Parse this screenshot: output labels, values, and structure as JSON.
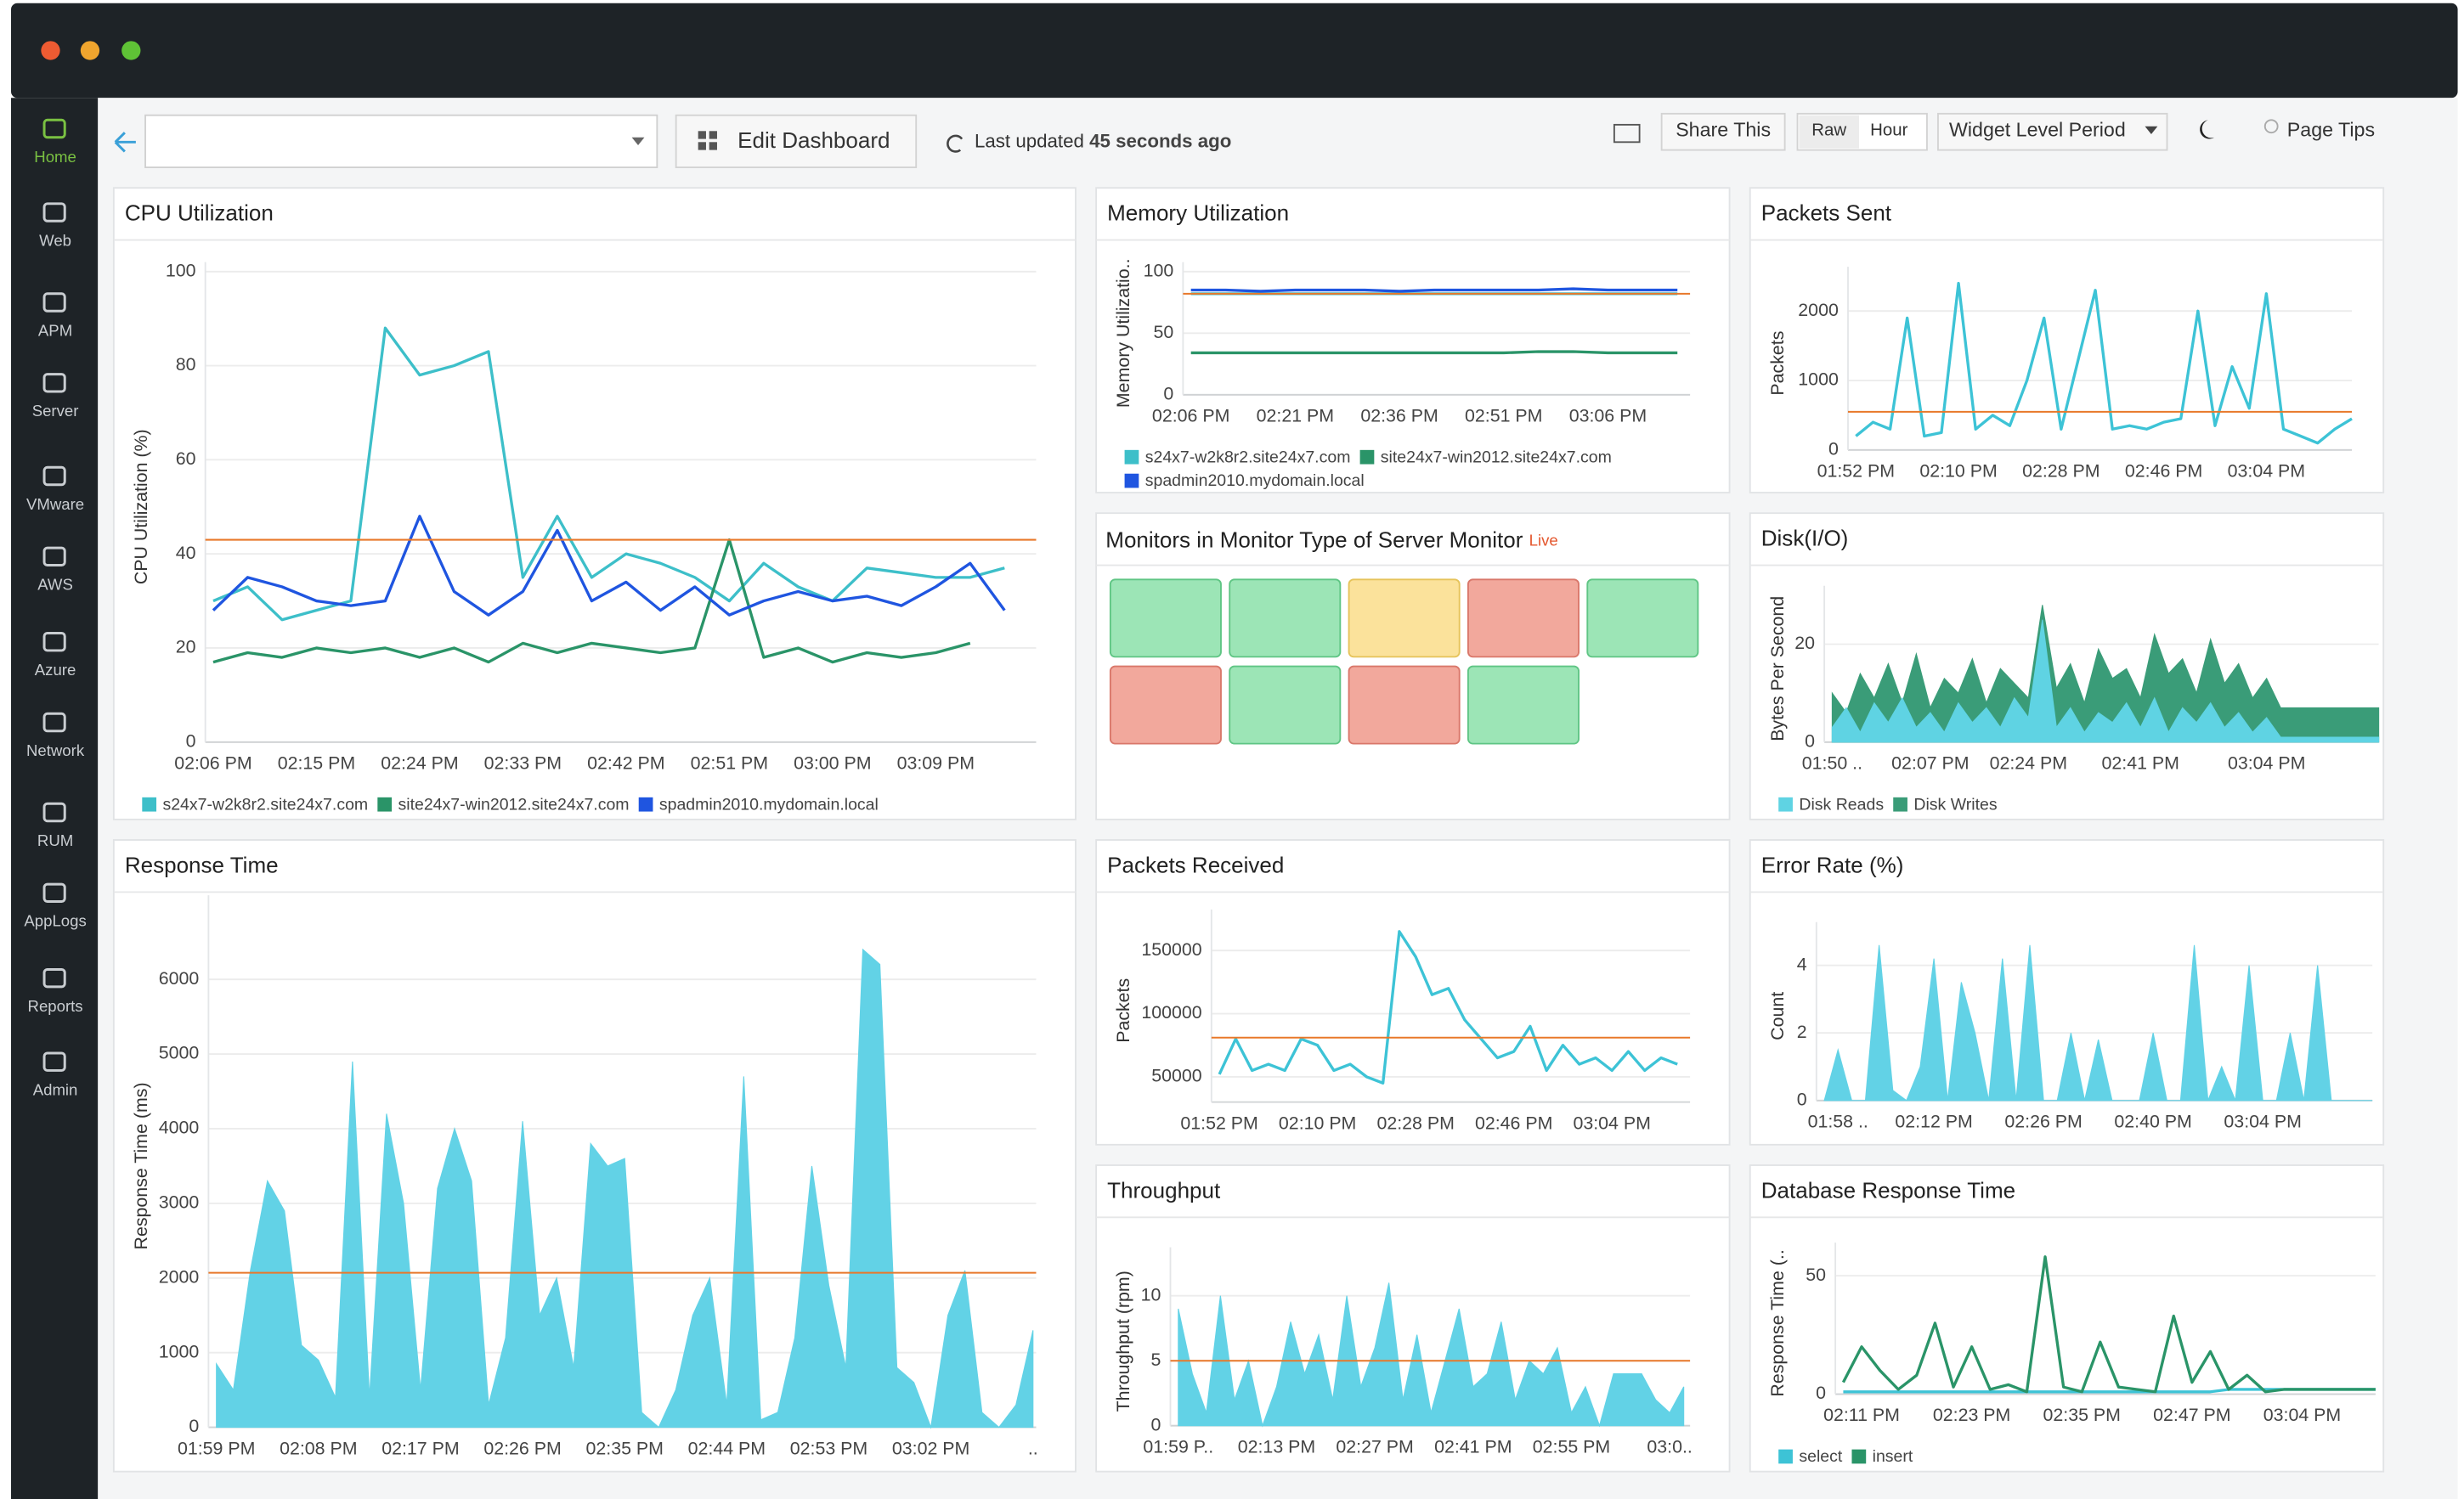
{
  "sidebar": {
    "items": [
      "Home",
      "Web",
      "APM",
      "Server",
      "VMware",
      "AWS",
      "Azure",
      "Network",
      "RUM",
      "AppLogs",
      "Reports",
      "Admin"
    ]
  },
  "toolbar": {
    "edit_dashboard": "Edit Dashboard",
    "last_updated": "Last updated",
    "last_updated_value": "45 seconds ago",
    "share": "Share This",
    "raw": "Raw",
    "hour": "Hour",
    "period": "Widget Level Period",
    "page_tips": "Page Tips"
  },
  "monitors": {
    "title": "Monitors in Monitor Type of Server Monitor",
    "live": "Live",
    "tile_colors": [
      "green",
      "green",
      "yellow",
      "red",
      "green",
      "red",
      "green",
      "red",
      "green"
    ]
  },
  "chart_data": [
    {
      "type": "line",
      "title": "CPU Utilization",
      "y_label": "CPU Utilization (%)",
      "categories": [
        "02:06 PM",
        null,
        null,
        "02:15 PM",
        null,
        null,
        "02:24 PM",
        null,
        null,
        "02:33 PM",
        null,
        null,
        "02:42 PM",
        null,
        null,
        "02:51 PM",
        null,
        null,
        "03:00 PM",
        null,
        null,
        "03:09 PM",
        null,
        null
      ],
      "series": [
        {
          "name": "s24x7-w2k8r2.site24x7.com",
          "color": "#3dbfc9",
          "values": [
            30,
            33,
            26,
            28,
            30,
            88,
            78,
            80,
            83,
            35,
            48,
            35,
            40,
            38,
            35,
            30,
            38,
            33,
            30,
            37,
            36,
            35,
            35,
            37
          ]
        },
        {
          "name": "site24x7-win2012.site24x7.com",
          "color": "#2a9468",
          "values": [
            17,
            19,
            18,
            20,
            19,
            20,
            18,
            20,
            17,
            21,
            19,
            21,
            20,
            19,
            20,
            43,
            18,
            20,
            17,
            19,
            18,
            19,
            21,
            null
          ]
        },
        {
          "name": "spadmin2010.mydomain.local",
          "color": "#1f55e0",
          "values": [
            28,
            35,
            33,
            30,
            29,
            30,
            48,
            32,
            27,
            32,
            45,
            30,
            34,
            28,
            33,
            27,
            30,
            32,
            30,
            31,
            29,
            33,
            38,
            28
          ]
        }
      ],
      "ylim": [
        0,
        100
      ],
      "yticks": [
        0,
        20,
        40,
        60,
        80,
        100
      ],
      "threshold": 43,
      "threshold_color": "#e8782a",
      "grid": true,
      "legend": true
    },
    {
      "type": "line",
      "title": "Memory Utilization",
      "y_label": "Memory Utilizatio..",
      "categories": [
        "02:06 PM",
        null,
        null,
        "02:21 PM",
        null,
        null,
        "02:36 PM",
        null,
        null,
        "02:51 PM",
        null,
        null,
        "03:06 PM",
        null,
        null
      ],
      "series": [
        {
          "name": "s24x7-w2k8r2.site24x7.com",
          "color": "#3dbfc9",
          "values": [
            82,
            82,
            82,
            82,
            82,
            82,
            82,
            82,
            82,
            82,
            82,
            82,
            82,
            82,
            82
          ]
        },
        {
          "name": "site24x7-win2012.site24x7.com",
          "color": "#2a9468",
          "values": [
            34,
            34,
            34,
            34,
            34,
            34,
            34,
            34,
            34,
            34,
            35,
            35,
            34,
            34,
            34
          ]
        },
        {
          "name": "spadmin2010.mydomain.local",
          "color": "#1f55e0",
          "values": [
            85,
            85,
            84,
            85,
            85,
            85,
            84,
            85,
            85,
            85,
            85,
            86,
            85,
            85,
            85
          ]
        }
      ],
      "ylim": [
        0,
        100
      ],
      "yticks": [
        0,
        50,
        100
      ],
      "threshold": 82,
      "threshold_color": "#e8782a",
      "grid": true,
      "legend": true
    },
    {
      "type": "line",
      "title": "Packets Sent",
      "y_label": "Packets",
      "categories": [
        "01:52 PM",
        null,
        null,
        null,
        null,
        null,
        "02:10 PM",
        null,
        null,
        null,
        null,
        null,
        "02:28 PM",
        null,
        null,
        null,
        null,
        null,
        "02:46 PM",
        null,
        null,
        null,
        null,
        null,
        "03:04 PM",
        null,
        null,
        null,
        null,
        null
      ],
      "color": "#3dc3d6",
      "values": [
        200,
        400,
        300,
        1900,
        200,
        250,
        2400,
        300,
        500,
        350,
        1000,
        1900,
        300,
        1300,
        2300,
        300,
        350,
        300,
        400,
        450,
        2000,
        350,
        1200,
        600,
        2250,
        300,
        200,
        100,
        300,
        450
      ],
      "ylim": [
        0,
        2500
      ],
      "yticks": [
        0,
        1000,
        2000
      ],
      "threshold": 550,
      "threshold_color": "#e8782a",
      "grid": true,
      "legend": false
    },
    {
      "type": "area",
      "title": "Disk(I/O)",
      "y_label": "Bytes Per Second",
      "categories": [
        "01:50 ..",
        null,
        null,
        null,
        null,
        null,
        null,
        "02:07 PM",
        null,
        null,
        null,
        null,
        null,
        null,
        "02:24 PM",
        null,
        null,
        null,
        null,
        null,
        null,
        null,
        "02:41 PM",
        null,
        null,
        null,
        null,
        null,
        null,
        null,
        null,
        "03:04 PM",
        null,
        null,
        null,
        null,
        null,
        null,
        null,
        null
      ],
      "series": [
        {
          "name": "Disk Reads",
          "color": "#5fd3e3",
          "values": [
            3,
            7,
            2,
            8,
            4,
            9,
            3,
            6,
            2,
            8,
            4,
            7,
            3,
            9,
            5,
            25,
            3,
            7,
            2,
            6,
            4,
            8,
            3,
            9,
            2,
            7,
            4,
            8,
            3,
            6,
            2,
            5,
            1,
            1,
            1,
            1,
            1,
            1,
            1,
            1
          ]
        },
        {
          "name": "Disk Writes",
          "color": "#3a9c78",
          "values": [
            10,
            6,
            14,
            9,
            16,
            8,
            18,
            7,
            13,
            10,
            17,
            8,
            15,
            12,
            9,
            28,
            11,
            16,
            8,
            19,
            13,
            15,
            9,
            22,
            14,
            17,
            10,
            21,
            12,
            16,
            9,
            13,
            7,
            7,
            7,
            7,
            7,
            7,
            7,
            7
          ]
        }
      ],
      "ylim": [
        0,
        30
      ],
      "yticks": [
        0,
        20
      ],
      "grid": true,
      "legend": true
    },
    {
      "type": "area",
      "title": "Response Time",
      "y_label": "Response Time (ms)",
      "categories": [
        "01:59 PM",
        null,
        null,
        null,
        null,
        null,
        "02:08 PM",
        null,
        null,
        null,
        null,
        null,
        "02:17 PM",
        null,
        null,
        null,
        null,
        null,
        "02:26 PM",
        null,
        null,
        null,
        null,
        null,
        "02:35 PM",
        null,
        null,
        null,
        null,
        null,
        "02:44 PM",
        null,
        null,
        null,
        null,
        null,
        "02:53 PM",
        null,
        null,
        null,
        null,
        null,
        "03:02 PM",
        null,
        null,
        null,
        null,
        null,
        ".."
      ],
      "color": "#62d2e6",
      "values": [
        850,
        500,
        2100,
        3300,
        2900,
        1100,
        900,
        400,
        4900,
        400,
        4200,
        3000,
        500,
        3200,
        4000,
        3300,
        300,
        1200,
        4100,
        1500,
        2000,
        800,
        3800,
        3500,
        3600,
        200,
        0,
        500,
        1500,
        2000,
        300,
        4700,
        100,
        200,
        1200,
        3500,
        1900,
        800,
        6400,
        6200,
        800,
        600,
        0,
        1500,
        2100,
        200,
        0,
        300,
        1300
      ],
      "ylim": [
        0,
        7000
      ],
      "yticks": [
        0,
        1000,
        2000,
        3000,
        4000,
        5000,
        6000
      ],
      "threshold": 2070,
      "threshold_color": "#e8782a",
      "grid": true,
      "legend": false
    },
    {
      "type": "line",
      "title": "Packets Received",
      "y_label": "Packets",
      "categories": [
        "01:52 PM",
        null,
        null,
        null,
        null,
        null,
        "02:10 PM",
        null,
        null,
        null,
        null,
        null,
        "02:28 PM",
        null,
        null,
        null,
        null,
        null,
        "02:46 PM",
        null,
        null,
        null,
        null,
        null,
        "03:04 PM",
        null,
        null,
        null,
        null
      ],
      "color": "#3dc3d6",
      "values": [
        52000,
        80000,
        55000,
        60000,
        55000,
        80000,
        75000,
        55000,
        60000,
        50000,
        45000,
        165000,
        145000,
        115000,
        120000,
        95000,
        80000,
        65000,
        70000,
        90000,
        55000,
        75000,
        60000,
        65000,
        55000,
        70000,
        55000,
        65000,
        60000
      ],
      "ylim": [
        30000,
        175000
      ],
      "yticks": [
        50000,
        100000,
        150000
      ],
      "threshold": 81000,
      "threshold_color": "#e8782a",
      "grid": true,
      "legend": false
    },
    {
      "type": "area",
      "title": "Error Rate (%)",
      "y_label": "Count",
      "categories": [
        null,
        "01:58 ..",
        null,
        null,
        null,
        null,
        null,
        null,
        "02:12 PM",
        null,
        null,
        null,
        null,
        null,
        null,
        null,
        "02:26 PM",
        null,
        null,
        null,
        null,
        null,
        null,
        null,
        "02:40 PM",
        null,
        null,
        null,
        null,
        null,
        null,
        null,
        "03:04 PM",
        null,
        null,
        null,
        null,
        null,
        null,
        null,
        null
      ],
      "color": "#62d2e6",
      "values": [
        0,
        1.5,
        0,
        0,
        4.6,
        0.3,
        0,
        1,
        4.2,
        0,
        3.5,
        2,
        0,
        4.2,
        0,
        4.6,
        0,
        0,
        2,
        0,
        1.8,
        0,
        0,
        0,
        2,
        0,
        0,
        4.6,
        0,
        1,
        0,
        4,
        0,
        0,
        2,
        0,
        4,
        0,
        0,
        0,
        0
      ],
      "ylim": [
        0,
        5
      ],
      "yticks": [
        0,
        2,
        4
      ],
      "grid": true,
      "legend": false
    },
    {
      "type": "area",
      "title": "Throughput",
      "y_label": "Throughput (rpm)",
      "categories": [
        "01:59 P..",
        null,
        null,
        null,
        null,
        null,
        null,
        "02:13 PM",
        null,
        null,
        null,
        null,
        null,
        null,
        "02:27 PM",
        null,
        null,
        null,
        null,
        null,
        null,
        "02:41 PM",
        null,
        null,
        null,
        null,
        null,
        null,
        "02:55 PM",
        null,
        null,
        null,
        null,
        null,
        null,
        "03:0..",
        null
      ],
      "color": "#62d2e6",
      "values": [
        9,
        4,
        1,
        10,
        2,
        5,
        0,
        3,
        8,
        4,
        7,
        2,
        10,
        3,
        6,
        11,
        2,
        7,
        1,
        5,
        9,
        3,
        4,
        8,
        2,
        5,
        4,
        6,
        1,
        3,
        0,
        4,
        4,
        4,
        2,
        1,
        3
      ],
      "ylim": [
        0,
        13
      ],
      "yticks": [
        0,
        5,
        10
      ],
      "threshold": 5,
      "threshold_color": "#e8782a",
      "grid": true,
      "legend": false
    },
    {
      "type": "line",
      "title": "Database Response Time",
      "y_label": "Response Time (..",
      "categories": [
        null,
        "02:11 PM",
        null,
        null,
        null,
        null,
        null,
        "02:23 PM",
        null,
        null,
        null,
        null,
        null,
        "02:35 PM",
        null,
        null,
        null,
        null,
        null,
        "02:47 PM",
        null,
        null,
        null,
        null,
        null,
        "03:04 PM",
        null,
        null,
        null,
        null
      ],
      "series": [
        {
          "name": "select",
          "color": "#3dc3d6",
          "values": [
            1,
            1,
            1,
            1,
            1,
            1,
            1,
            1,
            1,
            1,
            1,
            1,
            1,
            1,
            1,
            1,
            1,
            1,
            1,
            1,
            1,
            2,
            2,
            2,
            2,
            2,
            2,
            2,
            2,
            2
          ]
        },
        {
          "name": "insert",
          "color": "#2a9468",
          "values": [
            5,
            20,
            10,
            2,
            8,
            30,
            3,
            20,
            2,
            4,
            1,
            58,
            3,
            1,
            22,
            3,
            2,
            1,
            33,
            5,
            18,
            2,
            8,
            1,
            2,
            2,
            2,
            2,
            2,
            2
          ]
        }
      ],
      "ylim": [
        0,
        60
      ],
      "yticks": [
        0,
        50
      ],
      "grid": true,
      "legend": true
    }
  ]
}
